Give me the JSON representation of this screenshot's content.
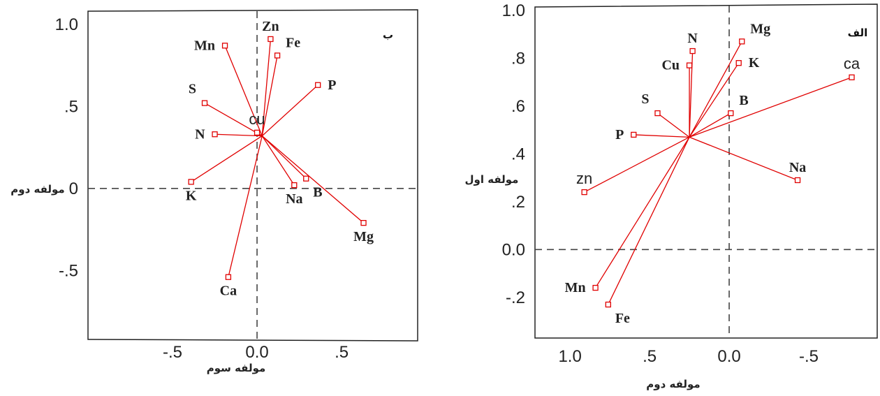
{
  "chart_data": [
    {
      "type": "scatter",
      "panel_label": "ب",
      "xlabel": "مولفه سوم",
      "ylabel": "مولفه دوم",
      "xlim": [
        -1.0,
        0.95
      ],
      "ylim": [
        -0.92,
        1.08
      ],
      "xticks": [
        {
          "v": -0.5,
          "t": "-.5"
        },
        {
          "v": 0.0,
          "t": "0.0"
        },
        {
          "v": 0.5,
          "t": ".5"
        }
      ],
      "yticks": [
        {
          "v": 1.0,
          "t": "1.0"
        },
        {
          "v": 0.5,
          "t": ".5"
        },
        {
          "v": 0.0,
          "t": "0"
        },
        {
          "v": -0.5,
          "t": "-.5"
        }
      ],
      "origin": [
        0.03,
        0.32
      ],
      "points": [
        {
          "name": "Zn",
          "x": 0.08,
          "y": 0.91,
          "pos": "above"
        },
        {
          "name": "Mn",
          "x": -0.19,
          "y": 0.87,
          "pos": "left"
        },
        {
          "name": "Fe",
          "x": 0.12,
          "y": 0.81,
          "pos": "right-up"
        },
        {
          "name": "P",
          "x": 0.36,
          "y": 0.63,
          "pos": "right"
        },
        {
          "name": "S",
          "x": -0.31,
          "y": 0.52,
          "pos": "left-up"
        },
        {
          "name": "cu",
          "x": 0.0,
          "y": 0.34,
          "pos": "above",
          "sans": true
        },
        {
          "name": "N",
          "x": -0.25,
          "y": 0.33,
          "pos": "left"
        },
        {
          "name": "K",
          "x": -0.39,
          "y": 0.04,
          "pos": "below"
        },
        {
          "name": "Na",
          "x": 0.22,
          "y": 0.02,
          "pos": "below"
        },
        {
          "name": "B",
          "x": 0.29,
          "y": 0.06,
          "pos": "below-right"
        },
        {
          "name": "Mg",
          "x": 0.63,
          "y": -0.21,
          "pos": "below"
        },
        {
          "name": "Ca",
          "x": -0.17,
          "y": -0.54,
          "pos": "below"
        }
      ]
    },
    {
      "type": "scatter",
      "panel_label": "الف",
      "xlabel": "مولفه دوم",
      "ylabel": "مولفه اول",
      "xlim": [
        1.22,
        -0.93
      ],
      "ylim": [
        -0.37,
        1.02
      ],
      "xticks": [
        {
          "v": 1.0,
          "t": "1.0"
        },
        {
          "v": 0.5,
          "t": ".5"
        },
        {
          "v": 0.0,
          "t": "0.0"
        },
        {
          "v": -0.5,
          "t": "-.5"
        }
      ],
      "yticks": [
        {
          "v": 1.0,
          "t": "1.0"
        },
        {
          "v": 0.8,
          "t": ".8"
        },
        {
          "v": 0.6,
          "t": ".6"
        },
        {
          "v": 0.4,
          "t": ".4"
        },
        {
          "v": 0.2,
          "t": ".2"
        },
        {
          "v": 0.0,
          "t": "0.0"
        },
        {
          "v": -0.2,
          "t": "-.2"
        }
      ],
      "origin": [
        0.25,
        0.47
      ],
      "points": [
        {
          "name": "Mg",
          "x": -0.08,
          "y": 0.87,
          "pos": "right-up"
        },
        {
          "name": "N",
          "x": 0.23,
          "y": 0.83,
          "pos": "above"
        },
        {
          "name": "Cu",
          "x": 0.25,
          "y": 0.77,
          "pos": "left"
        },
        {
          "name": "K",
          "x": -0.06,
          "y": 0.78,
          "pos": "right"
        },
        {
          "name": "ca",
          "x": -0.77,
          "y": 0.72,
          "pos": "above",
          "sans": true
        },
        {
          "name": "B",
          "x": -0.01,
          "y": 0.57,
          "pos": "right-up"
        },
        {
          "name": "S",
          "x": 0.45,
          "y": 0.57,
          "pos": "left-up"
        },
        {
          "name": "P",
          "x": 0.6,
          "y": 0.48,
          "pos": "left"
        },
        {
          "name": "Na",
          "x": -0.43,
          "y": 0.29,
          "pos": "above"
        },
        {
          "name": "zn",
          "x": 0.91,
          "y": 0.24,
          "pos": "above",
          "sans": true
        },
        {
          "name": "Mn",
          "x": 0.84,
          "y": -0.16,
          "pos": "left"
        },
        {
          "name": "Fe",
          "x": 0.76,
          "y": -0.23,
          "pos": "below-right"
        }
      ]
    }
  ]
}
